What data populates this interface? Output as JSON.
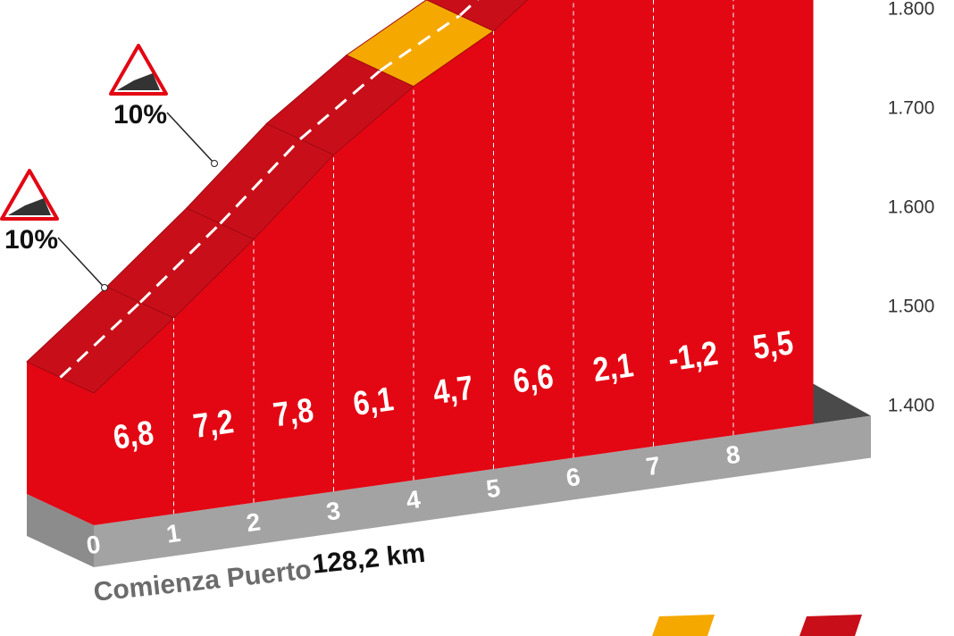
{
  "chart_data": {
    "type": "climb-profile",
    "categories": [
      "0",
      "1",
      "2",
      "3",
      "4",
      "5",
      "6",
      "7",
      "8"
    ],
    "values": [
      6.8,
      7.2,
      7.8,
      6.1,
      4.7,
      6.6,
      2.1,
      -1.2,
      5.5
    ],
    "value_labels": [
      "6,8",
      "7,2",
      "7,8",
      "6,1",
      "4,7",
      "6,6",
      "2,1",
      "-1,2",
      "5,5"
    ],
    "segment_colors": [
      "#c80f19",
      "#c80f19",
      "#c80f19",
      "#c80f19",
      "#f5a800",
      "#c80f19",
      "#c80f19",
      "#c80f19",
      "#c80f19"
    ],
    "face_color": "#e30613",
    "ylim": [
      1400,
      1800
    ],
    "yticks": [
      {
        "value": 1400,
        "label": "1.400"
      },
      {
        "value": 1500,
        "label": "1.500"
      },
      {
        "value": 1600,
        "label": "1.600"
      },
      {
        "value": 1700,
        "label": "1.700"
      },
      {
        "value": 1800,
        "label": "1.800"
      }
    ],
    "annotations": [
      {
        "label": "10%"
      },
      {
        "label": "10%"
      }
    ],
    "start_label": "Comienza Puerto",
    "start_km": "128,2 km"
  }
}
